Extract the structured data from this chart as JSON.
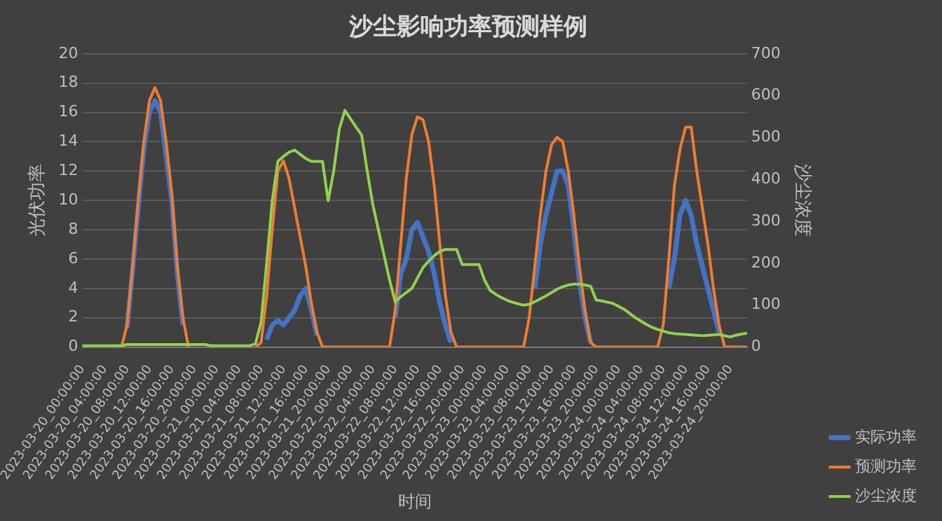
{
  "chart_data": {
    "type": "line",
    "title": "沙尘影响功率预测样例",
    "xlabel": "时间",
    "ylabel": "光伏功率",
    "y2label": "沙尘浓度",
    "categories": [
      "2023-03-20_00:00:00",
      null,
      null,
      null,
      "2023-03-20_04:00:00",
      null,
      null,
      null,
      "2023-03-20_08:00:00",
      null,
      null,
      null,
      "2023-03-20_12:00:00",
      null,
      null,
      null,
      "2023-03-20_16:00:00",
      null,
      null,
      null,
      "2023-03-20_20:00:00",
      null,
      null,
      null,
      "2023-03-21_00:00:00",
      null,
      null,
      null,
      "2023-03-21_04:00:00",
      null,
      null,
      null,
      "2023-03-21_08:00:00",
      null,
      null,
      null,
      "2023-03-21_12:00:00",
      null,
      null,
      null,
      "2023-03-21_16:00:00",
      null,
      null,
      null,
      "2023-03-21_20:00:00",
      null,
      null,
      null,
      "2023-03-22_00:00:00",
      null,
      null,
      null,
      "2023-03-22_04:00:00",
      null,
      null,
      null,
      "2023-03-22_08:00:00",
      null,
      null,
      null,
      "2023-03-22_12:00:00",
      null,
      null,
      null,
      "2023-03-22_16:00:00",
      null,
      null,
      null,
      "2023-03-22_20:00:00",
      null,
      null,
      null,
      "2023-03-23_00:00:00",
      null,
      null,
      null,
      "2023-03-23_04:00:00",
      null,
      null,
      null,
      "2023-03-23_08:00:00",
      null,
      null,
      null,
      "2023-03-23_12:00:00",
      null,
      null,
      null,
      "2023-03-23_16:00:00",
      null,
      null,
      null,
      "2023-03-23_20:00:00",
      null,
      null,
      null,
      "2023-03-24_00:00:00",
      null,
      null,
      null,
      "2023-03-24_04:00:00",
      null,
      null,
      null,
      "2023-03-24_08:00:00",
      null,
      null,
      null,
      "2023-03-24_12:00:00",
      null,
      null,
      null,
      "2023-03-24_16:00:00",
      null,
      null,
      null,
      "2023-03-24_20:00:00",
      null,
      null,
      null
    ],
    "series": [
      {
        "name": "实际功率",
        "color": "#4472c4",
        "values": [
          null,
          null,
          null,
          null,
          null,
          null,
          null,
          null,
          1.3,
          5.3,
          9.5,
          13.5,
          16,
          16.8,
          16,
          13,
          10,
          5,
          1.5,
          null,
          null,
          null,
          null,
          null,
          null,
          null,
          null,
          null,
          null,
          null,
          null,
          null,
          null,
          0.5,
          1.5,
          1.8,
          1.5,
          2,
          2.5,
          3.5,
          4,
          2.5,
          0.8,
          null,
          null,
          null,
          null,
          null,
          null,
          null,
          null,
          null,
          null,
          null,
          null,
          null,
          2,
          5,
          6,
          8,
          8.5,
          7.5,
          6.5,
          5,
          3,
          1.5,
          0.3,
          null,
          null,
          null,
          null,
          null,
          null,
          null,
          null,
          null,
          null,
          null,
          null,
          null,
          null,
          4,
          7,
          9,
          10.5,
          12,
          12,
          11,
          8,
          4.5,
          2,
          0.3,
          null,
          null,
          null,
          null,
          null,
          null,
          null,
          null,
          null,
          null,
          null,
          null,
          null,
          4,
          6,
          9,
          10,
          9,
          7,
          5.5,
          4,
          2.5,
          1,
          null,
          null,
          null,
          null,
          null
        ]
      },
      {
        "name": "预测功率",
        "color": "#ed7d31",
        "values": [
          null,
          null,
          null,
          null,
          null,
          null,
          null,
          0,
          1.5,
          5.5,
          10,
          14,
          16.8,
          17.7,
          16.8,
          14,
          10.5,
          5.5,
          2,
          0,
          null,
          null,
          null,
          null,
          null,
          null,
          null,
          null,
          null,
          null,
          null,
          0,
          0.3,
          3.5,
          8,
          12,
          12.7,
          11.5,
          9.5,
          7.5,
          5.5,
          3,
          1,
          0,
          0,
          0,
          0,
          0,
          0,
          0,
          0,
          0,
          0,
          0,
          0,
          0,
          2.5,
          7,
          11.5,
          14.5,
          15.7,
          15.5,
          14,
          11,
          7,
          3.5,
          1,
          0,
          0,
          0,
          0,
          0,
          0,
          0,
          0,
          0,
          0,
          0,
          0,
          0,
          2,
          5.5,
          9,
          12,
          13.8,
          14.3,
          14,
          12,
          9,
          5.5,
          2.5,
          0.3,
          0,
          0,
          0,
          0,
          0,
          0,
          0,
          0,
          0,
          0,
          0,
          0,
          1.5,
          6,
          11,
          13.5,
          15,
          15,
          12,
          9.5,
          7,
          4,
          1.5,
          0,
          0,
          0,
          0,
          0
        ]
      },
      {
        "name": "沙尘浓度",
        "color": "#92d050",
        "axis": "y2",
        "values": [
          3,
          3,
          3,
          3,
          3,
          3,
          3,
          3,
          6,
          6,
          6,
          6,
          6,
          6,
          6,
          6,
          6,
          6,
          6,
          6,
          6,
          6,
          6,
          3,
          3,
          3,
          3,
          3,
          3,
          3,
          3,
          8,
          60,
          200,
          350,
          443,
          455,
          465,
          470,
          460,
          450,
          443,
          443,
          443,
          349,
          420,
          520,
          565,
          545,
          525,
          506,
          420,
          340,
          280,
          220,
          160,
          108,
          120,
          130,
          140,
          165,
          190,
          205,
          218,
          228,
          233,
          233,
          233,
          197,
          197,
          197,
          197,
          160,
          135,
          126,
          118,
          112,
          107,
          103,
          100,
          102,
          108,
          115,
          122,
          130,
          138,
          144,
          148,
          150,
          150,
          148,
          145,
          112,
          110,
          107,
          104,
          97,
          90,
          80,
          70,
          62,
          54,
          47,
          42,
          38,
          34,
          32,
          31,
          30,
          29,
          28,
          27,
          28,
          29,
          30,
          27,
          24,
          28,
          31,
          33
        ]
      }
    ],
    "ylim": [
      0,
      20
    ],
    "yticks": [
      0,
      2,
      4,
      6,
      8,
      10,
      12,
      14,
      16,
      18,
      20
    ],
    "y2lim": [
      0,
      700
    ],
    "y2ticks": [
      0,
      100,
      200,
      300,
      400,
      500,
      600,
      700
    ],
    "grid": "y",
    "legend": "right",
    "marker": "none",
    "line_style": "solid"
  }
}
